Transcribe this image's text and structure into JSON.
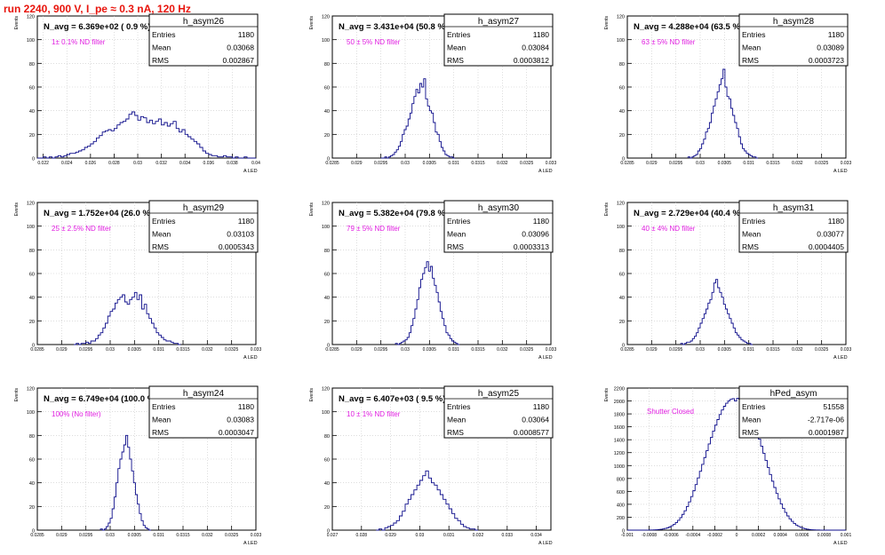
{
  "main_title": "run 2240,   900 V, I_pe ≈ 0.3 nA, 120 Hz",
  "colors": {
    "title": "#e8140c",
    "annotation": "#e01ce0",
    "histogram": "#0b0b8a",
    "frame": "#000000",
    "grid": "#c8c8c8"
  },
  "chart_data": [
    {
      "type": "histogram",
      "name": "h_asym26",
      "xlabel": "A_LED",
      "ylabel": "Events",
      "xlim": [
        0.0215,
        0.04
      ],
      "ylim": [
        0,
        120
      ],
      "xticks": [
        0.022,
        0.024,
        0.026,
        0.028,
        0.03,
        0.032,
        0.034,
        0.036,
        0.038,
        0.04
      ],
      "xtick_labels": [
        "0.022",
        "0.024",
        "0.026",
        "0.028",
        "0.03",
        "0.032",
        "0.034",
        "0.036",
        "0.038",
        "0.04"
      ],
      "yticks": [
        0,
        20,
        40,
        60,
        80,
        100,
        120
      ],
      "n_avg": "N_avg = 6.369e+02 ( 0.9 %)",
      "filter": "1± 0.1% ND filter",
      "stats": [
        [
          "Entries",
          "1180"
        ],
        [
          "Mean",
          "0.03068"
        ],
        [
          "RMS",
          "0.002867"
        ]
      ],
      "hist": {
        "x0": 0.0215,
        "bin": 0.00025,
        "counts": [
          0,
          0,
          1,
          0,
          1,
          0,
          1,
          2,
          1,
          2,
          3,
          4,
          4,
          5,
          6,
          7,
          9,
          10,
          12,
          14,
          17,
          19,
          22,
          23,
          24,
          23,
          25,
          28,
          30,
          31,
          33,
          37,
          39,
          36,
          32,
          35,
          34,
          30,
          32,
          29,
          31,
          33,
          28,
          30,
          27,
          29,
          31,
          25,
          22,
          24,
          20,
          18,
          16,
          14,
          12,
          9,
          6,
          4,
          3,
          2,
          2,
          1,
          1,
          2,
          1,
          1,
          0,
          1,
          0,
          0,
          1,
          0,
          0,
          0
        ]
      }
    },
    {
      "type": "histogram",
      "name": "h_asym27",
      "xlabel": "A_LED",
      "ylabel": "Events",
      "xlim": [
        0.0285,
        0.033
      ],
      "ylim": [
        0,
        120
      ],
      "xticks": [
        0.0285,
        0.029,
        0.0295,
        0.03,
        0.0305,
        0.031,
        0.0315,
        0.032,
        0.0325,
        0.033
      ],
      "xtick_labels": [
        "0.0285",
        "0.029",
        "0.0295",
        "0.03",
        "0.0305",
        "0.031",
        "0.0315",
        "0.032",
        "0.0325",
        "0.033"
      ],
      "yticks": [
        0,
        20,
        40,
        60,
        80,
        100,
        120
      ],
      "n_avg": "N_avg = 3.431e+04 (50.8 %)",
      "filter": "50 ± 5% ND filter",
      "stats": [
        [
          "Entries",
          "1180"
        ],
        [
          "Mean",
          "0.03084"
        ],
        [
          "RMS",
          "0.0003812"
        ]
      ],
      "hist": {
        "x0": 0.0295,
        "bin": 4e-05,
        "counts": [
          0,
          0,
          1,
          0,
          1,
          2,
          3,
          5,
          7,
          10,
          14,
          20,
          24,
          27,
          33,
          38,
          46,
          52,
          58,
          55,
          63,
          60,
          67,
          50,
          44,
          40,
          38,
          30,
          22,
          20,
          14,
          9,
          6,
          3,
          2,
          1,
          1,
          0
        ]
      }
    },
    {
      "type": "histogram",
      "name": "h_asym28",
      "xlabel": "A_LED",
      "ylabel": "Events",
      "xlim": [
        0.0285,
        0.033
      ],
      "ylim": [
        0,
        120
      ],
      "xticks": [
        0.0285,
        0.029,
        0.0295,
        0.03,
        0.0305,
        0.031,
        0.0315,
        0.032,
        0.0325,
        0.033
      ],
      "xtick_labels": [
        "0.0285",
        "0.029",
        "0.0295",
        "0.03",
        "0.0305",
        "0.031",
        "0.0315",
        "0.032",
        "0.0325",
        "0.033"
      ],
      "yticks": [
        0,
        20,
        40,
        60,
        80,
        100,
        120
      ],
      "n_avg": "N_avg = 4.288e+04 (63.5 %)",
      "filter": "63 ± 5% ND filter",
      "stats": [
        [
          "Entries",
          "1180"
        ],
        [
          "Mean",
          "0.03089"
        ],
        [
          "RMS",
          "0.0003723"
        ]
      ],
      "hist": {
        "x0": 0.02975,
        "bin": 4e-05,
        "counts": [
          1,
          0,
          1,
          2,
          3,
          6,
          8,
          12,
          16,
          22,
          25,
          30,
          38,
          44,
          50,
          56,
          62,
          67,
          75,
          60,
          52,
          50,
          42,
          36,
          30,
          25,
          18,
          12,
          8,
          6,
          4,
          3,
          2,
          1,
          1,
          0
        ]
      }
    },
    {
      "type": "histogram",
      "name": "h_asym29",
      "xlabel": "A_LED",
      "ylabel": "Events",
      "xlim": [
        0.0285,
        0.033
      ],
      "ylim": [
        0,
        120
      ],
      "xticks": [
        0.0285,
        0.029,
        0.0295,
        0.03,
        0.0305,
        0.031,
        0.0315,
        0.032,
        0.0325,
        0.033
      ],
      "xtick_labels": [
        "0.0285",
        "0.029",
        "0.0295",
        "0.03",
        "0.0305",
        "0.031",
        "0.0315",
        "0.032",
        "0.0325",
        "0.033"
      ],
      "yticks": [
        0,
        20,
        40,
        60,
        80,
        100,
        120
      ],
      "n_avg": "N_avg = 1.752e+04 (26.0 %)",
      "filter": "25 ± 2.5% ND filter",
      "stats": [
        [
          "Entries",
          "1180"
        ],
        [
          "Mean",
          "0.03103"
        ],
        [
          "RMS",
          "0.0005343"
        ]
      ],
      "hist": {
        "x0": 0.02925,
        "bin": 5e-05,
        "counts": [
          0,
          1,
          0,
          1,
          1,
          2,
          1,
          3,
          3,
          5,
          8,
          10,
          14,
          18,
          24,
          28,
          30,
          35,
          38,
          40,
          42,
          36,
          34,
          38,
          40,
          44,
          38,
          42,
          30,
          34,
          26,
          22,
          18,
          14,
          10,
          8,
          6,
          4,
          3,
          3,
          2,
          1,
          1,
          0
        ]
      }
    },
    {
      "type": "histogram",
      "name": "h_asym30",
      "xlabel": "A_LED",
      "ylabel": "Events",
      "xlim": [
        0.0285,
        0.033
      ],
      "ylim": [
        0,
        120
      ],
      "xticks": [
        0.0285,
        0.029,
        0.0295,
        0.03,
        0.0305,
        0.031,
        0.0315,
        0.032,
        0.0325,
        0.033
      ],
      "xtick_labels": [
        "0.0285",
        "0.029",
        "0.0295",
        "0.03",
        "0.0305",
        "0.031",
        "0.0315",
        "0.032",
        "0.0325",
        "0.033"
      ],
      "yticks": [
        0,
        20,
        40,
        60,
        80,
        100,
        120
      ],
      "n_avg": "N_avg = 5.382e+04 (79.8 %)",
      "filter": "79 ± 5% ND filter",
      "stats": [
        [
          "Entries",
          "1180"
        ],
        [
          "Mean",
          "0.03096"
        ],
        [
          "RMS",
          "0.0003313"
        ]
      ],
      "hist": {
        "x0": 0.0298,
        "bin": 4e-05,
        "counts": [
          1,
          0,
          1,
          2,
          3,
          4,
          6,
          10,
          16,
          22,
          30,
          38,
          48,
          55,
          60,
          65,
          70,
          62,
          66,
          56,
          50,
          44,
          36,
          28,
          22,
          16,
          10,
          8,
          5,
          3,
          2,
          1,
          0
        ]
      }
    },
    {
      "type": "histogram",
      "name": "h_asym31",
      "xlabel": "A_LED",
      "ylabel": "Events",
      "xlim": [
        0.0285,
        0.033
      ],
      "ylim": [
        0,
        120
      ],
      "xticks": [
        0.0285,
        0.029,
        0.0295,
        0.03,
        0.0305,
        0.031,
        0.0315,
        0.032,
        0.0325,
        0.033
      ],
      "xtick_labels": [
        "0.0285",
        "0.029",
        "0.0295",
        "0.03",
        "0.0305",
        "0.031",
        "0.0315",
        "0.032",
        "0.0325",
        "0.033"
      ],
      "yticks": [
        0,
        20,
        40,
        60,
        80,
        100,
        120
      ],
      "n_avg": "N_avg = 2.729e+04 (40.4 %)",
      "filter": "40 ± 4% ND filter",
      "stats": [
        [
          "Entries",
          "1180"
        ],
        [
          "Mean",
          "0.03077"
        ],
        [
          "RMS",
          "0.0004405"
        ]
      ],
      "hist": {
        "x0": 0.0296,
        "bin": 4e-05,
        "counts": [
          1,
          0,
          1,
          2,
          2,
          3,
          5,
          7,
          10,
          14,
          18,
          22,
          26,
          30,
          35,
          38,
          44,
          52,
          55,
          48,
          44,
          40,
          34,
          30,
          26,
          22,
          18,
          14,
          10,
          8,
          6,
          4,
          3,
          2,
          1,
          1,
          0
        ]
      }
    },
    {
      "type": "histogram",
      "name": "h_asym24",
      "xlabel": "A_LED",
      "ylabel": "Events",
      "xlim": [
        0.0285,
        0.033
      ],
      "ylim": [
        0,
        120
      ],
      "xticks": [
        0.0285,
        0.029,
        0.0295,
        0.03,
        0.0305,
        0.031,
        0.0315,
        0.032,
        0.0325,
        0.033
      ],
      "xtick_labels": [
        "0.0285",
        "0.029",
        "0.0295",
        "0.03",
        "0.0305",
        "0.031",
        "0.0315",
        "0.032",
        "0.0325",
        "0.033"
      ],
      "yticks": [
        0,
        20,
        40,
        60,
        80,
        100,
        120
      ],
      "n_avg": "N_avg = 6.749e+04 (100.0 %)",
      "filter": "100% (No filter)",
      "stats": [
        [
          "Entries",
          "1180"
        ],
        [
          "Mean",
          "0.03083"
        ],
        [
          "RMS",
          "0.0003047"
        ]
      ],
      "hist": {
        "x0": 0.0298,
        "bin": 4e-05,
        "counts": [
          1,
          0,
          1,
          3,
          6,
          10,
          18,
          28,
          40,
          52,
          60,
          66,
          72,
          80,
          70,
          60,
          50,
          40,
          30,
          22,
          14,
          8,
          4,
          2,
          1,
          0
        ]
      }
    },
    {
      "type": "histogram",
      "name": "h_asym25",
      "xlabel": "A_LED",
      "ylabel": "Events",
      "xlim": [
        0.027,
        0.0345
      ],
      "ylim": [
        0,
        120
      ],
      "xticks": [
        0.027,
        0.028,
        0.029,
        0.03,
        0.031,
        0.032,
        0.033,
        0.034
      ],
      "xtick_labels": [
        "0.027",
        "0.028",
        "0.029",
        "0.03",
        "0.031",
        "0.032",
        "0.033",
        "0.034"
      ],
      "yticks": [
        0,
        20,
        40,
        60,
        80,
        100,
        120
      ],
      "n_avg": "N_avg = 6.407e+03 ( 9.5 %)",
      "filter": "10 ± 1% ND filter",
      "stats": [
        [
          "Entries",
          "1180"
        ],
        [
          "Mean",
          "0.03064"
        ],
        [
          "RMS",
          "0.0008577"
        ]
      ],
      "hist": {
        "x0": 0.0285,
        "bin": 0.0001,
        "counts": [
          0,
          1,
          0,
          2,
          3,
          4,
          6,
          8,
          12,
          16,
          22,
          26,
          30,
          34,
          38,
          42,
          46,
          50,
          44,
          40,
          38,
          34,
          30,
          26,
          22,
          18,
          14,
          10,
          8,
          5,
          3,
          2,
          1,
          1,
          0
        ]
      }
    },
    {
      "type": "histogram",
      "name": "hPed_asym",
      "xlabel": "A_LED",
      "ylabel": "Events",
      "xlim": [
        -0.001,
        0.001
      ],
      "ylim": [
        0,
        2200
      ],
      "xticks": [
        -0.001,
        -0.0008,
        -0.0006,
        -0.0004,
        -0.0002,
        0,
        0.0002,
        0.0004,
        0.0006,
        0.0008,
        0.001
      ],
      "xtick_labels": [
        "-0.001",
        "-0.0008",
        "-0.0006",
        "-0.0004",
        "-0.0002",
        "0",
        "0.0002",
        "0.0004",
        "0.0006",
        "0.0008",
        "0.001"
      ],
      "yticks": [
        0,
        200,
        400,
        600,
        800,
        1000,
        1200,
        1400,
        1600,
        1800,
        2000,
        2200
      ],
      "n_avg": "",
      "filter": "Shutter Closed",
      "stats": [
        [
          "Entries",
          "51558"
        ],
        [
          "Mean",
          "-2.717e-06"
        ],
        [
          "RMS",
          "0.0001987"
        ]
      ],
      "hist": {
        "x0": -0.001,
        "bin": 2e-05,
        "counts": [
          0,
          0,
          0,
          0,
          0,
          0,
          0,
          0,
          1,
          1,
          2,
          3,
          4,
          6,
          9,
          13,
          18,
          26,
          36,
          50,
          68,
          90,
          118,
          152,
          194,
          244,
          300,
          365,
          438,
          520,
          610,
          706,
          808,
          912,
          1018,
          1124,
          1230,
          1334,
          1436,
          1534,
          1626,
          1712,
          1790,
          1860,
          1918,
          1966,
          2002,
          2026,
          2036,
          2000,
          2040,
          2028,
          2000,
          1960,
          1910,
          1850,
          1780,
          1700,
          1610,
          1512,
          1408,
          1300,
          1190,
          1080,
          970,
          862,
          758,
          660,
          568,
          484,
          406,
          336,
          274,
          220,
          174,
          136,
          104,
          78,
          58,
          42,
          30,
          21,
          14,
          9,
          6,
          4,
          3,
          2,
          1,
          1,
          0,
          0,
          0,
          0,
          0,
          0,
          0,
          0,
          0,
          0
        ]
      }
    }
  ]
}
